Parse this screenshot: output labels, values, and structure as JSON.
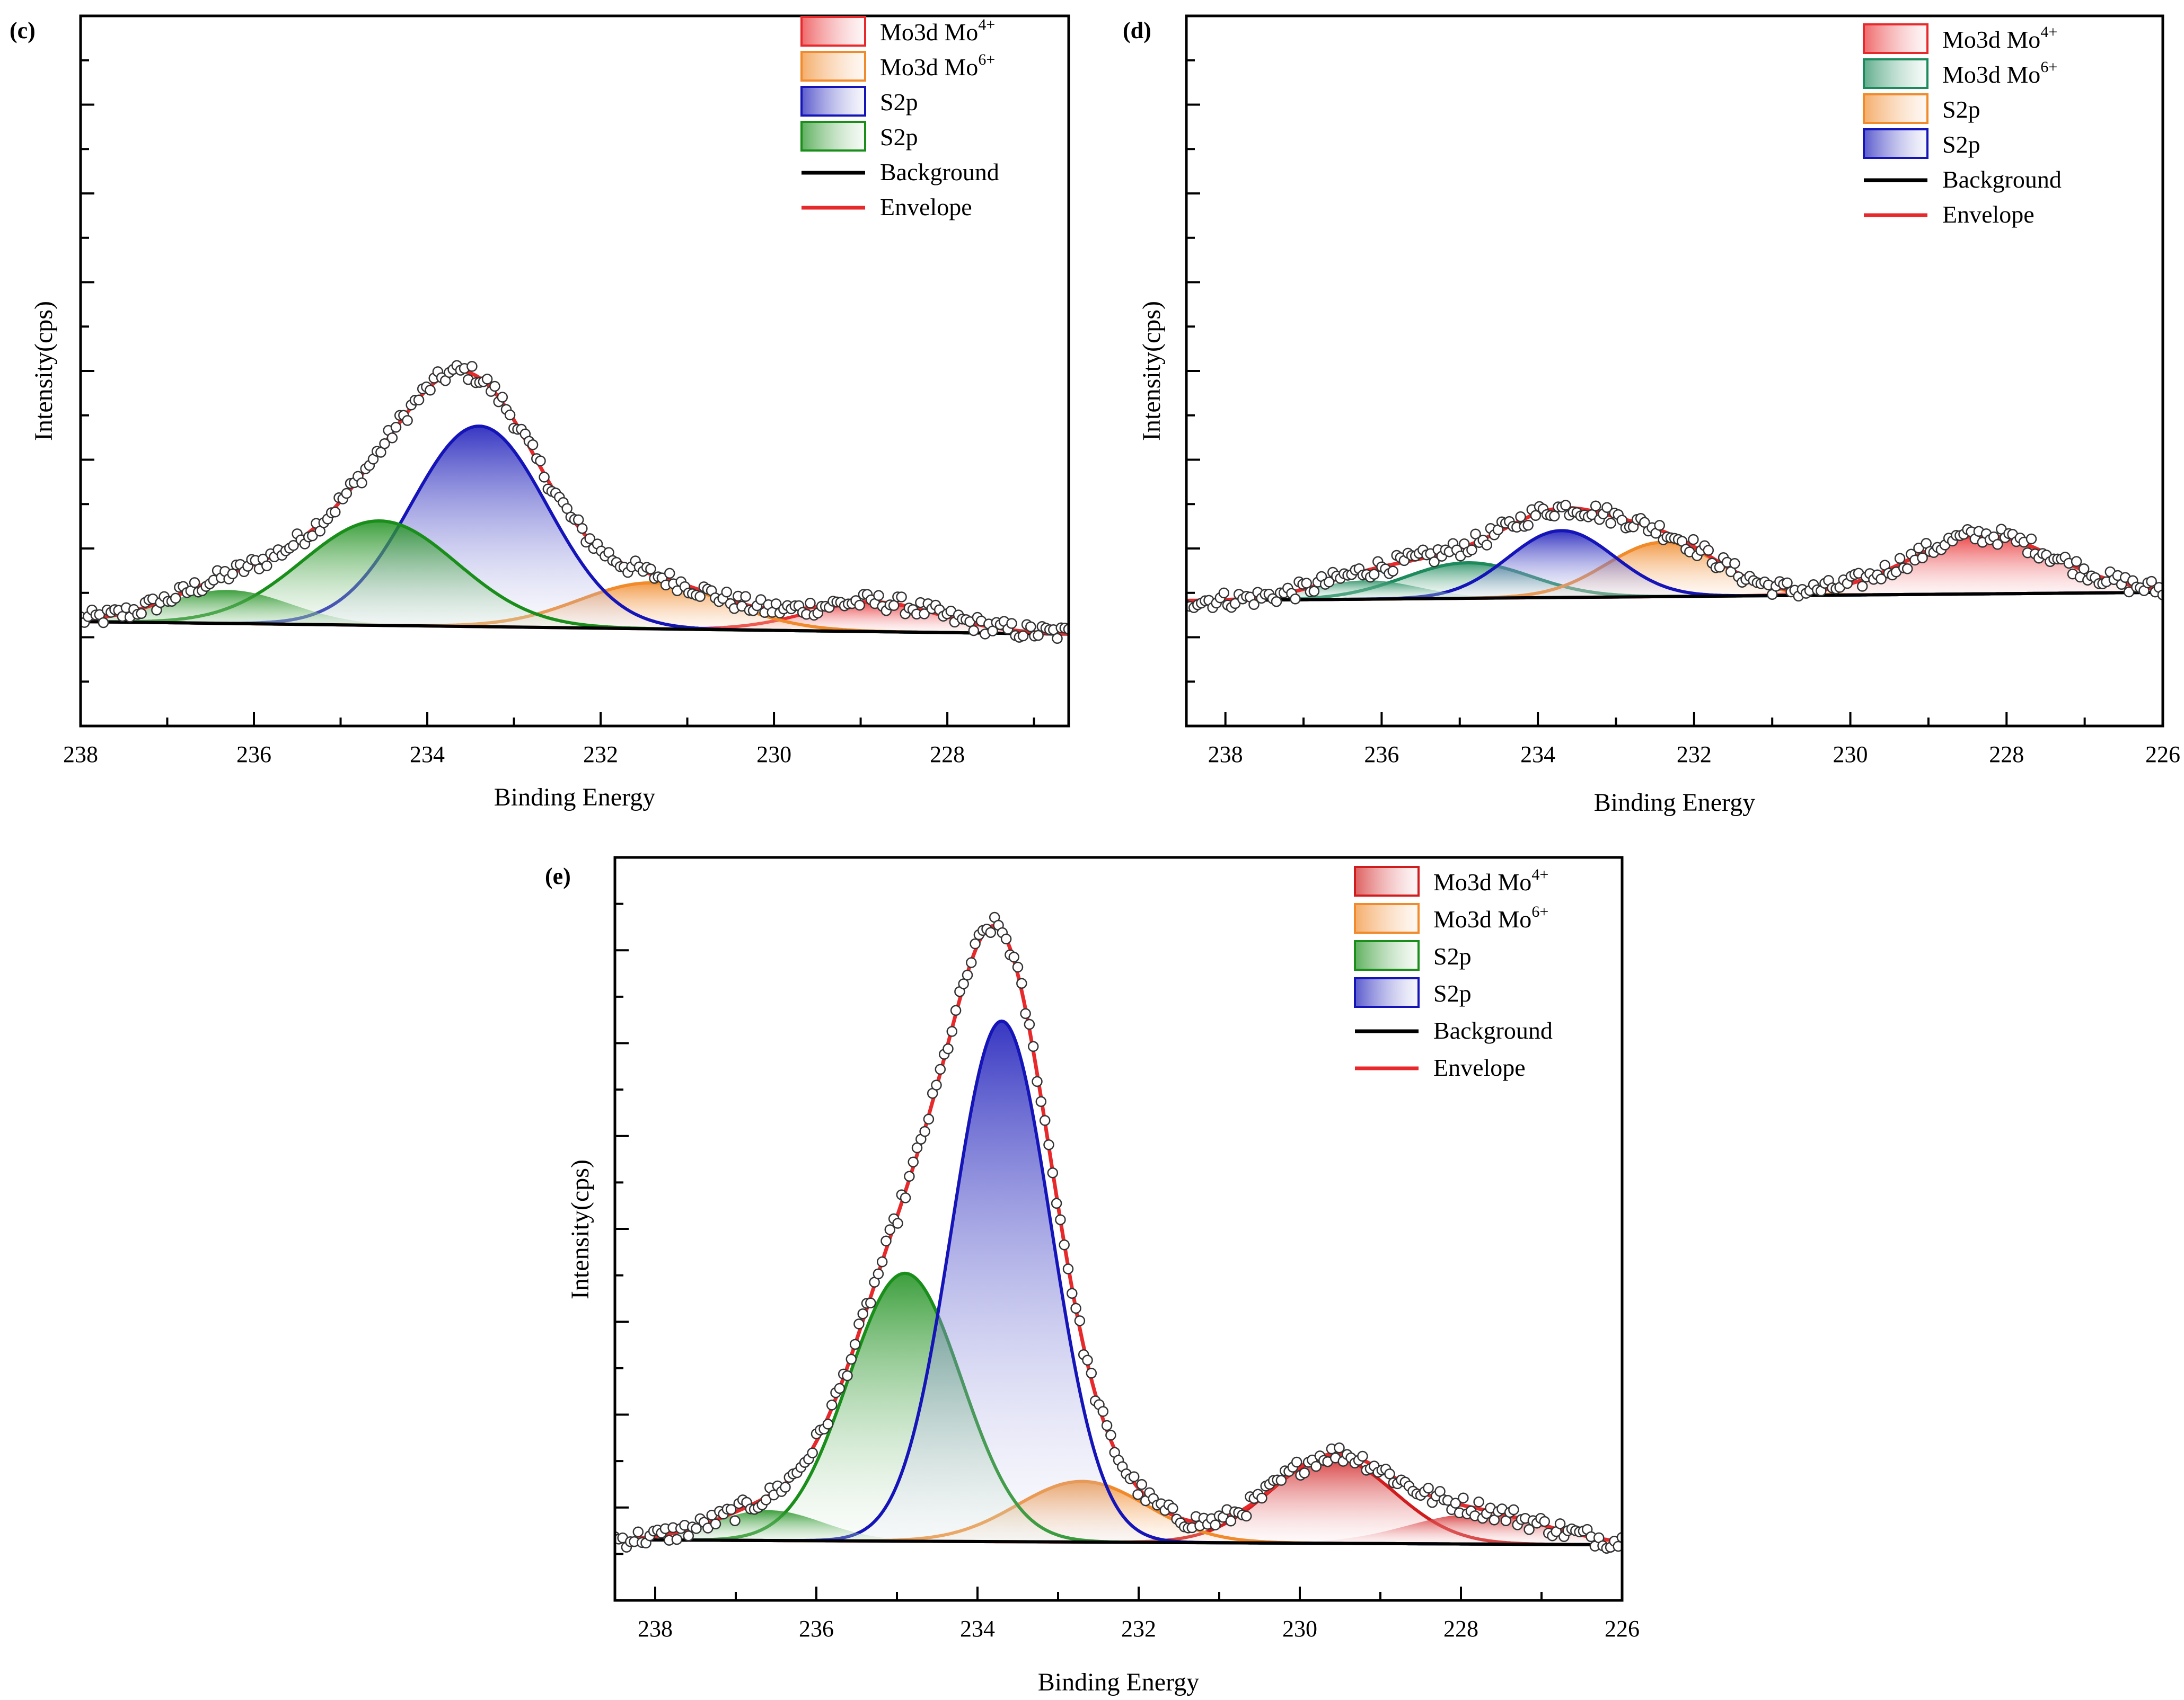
{
  "chart_data": [
    {
      "type": "line",
      "panel_label": "(c)",
      "title": "",
      "xlabel": "Binding Energy",
      "ylabel": "Intensity(cps)",
      "xlim": [
        238,
        226.6
      ],
      "ylim": [
        -0.25,
        1.45
      ],
      "xticks": [
        "238",
        "236",
        "234",
        "232",
        "230",
        "228"
      ],
      "baseline": [
        0.0,
        -0.03
      ],
      "components": [
        {
          "name": "Mo3d  Mo",
          "sup": "4+",
          "legend": "Mo3d  Mo4+",
          "center": 228.85,
          "height": 0.07,
          "fwhm": 1.8,
          "color": "#e8292b",
          "light": "#fbe3e6"
        },
        {
          "name": "Mo3d  Mo",
          "sup": "6+",
          "legend": "Mo3d  Mo6+",
          "center": 231.4,
          "height": 0.11,
          "fwhm": 2.0,
          "color": "#f08a2a",
          "light": "#fde8d8"
        },
        {
          "name": "S2p",
          "sup": "",
          "legend": "S2p",
          "center": 233.4,
          "height": 0.48,
          "fwhm": 1.85,
          "color": "#1414b8",
          "light": "#e4e6f6"
        },
        {
          "name": "S2p",
          "sup": "",
          "legend": "S2p",
          "center": 234.55,
          "height": 0.25,
          "fwhm": 2.1,
          "color": "#1a8e1a",
          "light": "#e4f1e4"
        },
        {
          "name": "S2p shoulder",
          "sup": "",
          "legend": "",
          "center": 236.3,
          "height": 0.08,
          "fwhm": 1.7,
          "color": "#1a8e1a",
          "light": "#e4f1e4",
          "hidden": true
        }
      ],
      "legend": [
        "Mo3d  Mo4+",
        "Mo3d  Mo6+",
        "S2p",
        "S2p",
        "Background",
        "Envelope"
      ],
      "background_color": "#000000",
      "envelope_color": "#e8292b"
    },
    {
      "type": "line",
      "panel_label": "(d)",
      "title": "",
      "xlabel": "Binding Energy",
      "ylabel": "Intensity(cps)",
      "xlim": [
        238.5,
        226
      ],
      "ylim": [
        -0.3,
        1.4
      ],
      "xticks": [
        "238",
        "236",
        "234",
        "232",
        "230",
        "228",
        "226"
      ],
      "baseline": [
        0.0,
        0.02
      ],
      "components": [
        {
          "name": "Mo3d  Mo",
          "sup": "4+",
          "legend": "Mo3d  Mo4+",
          "center": 228.3,
          "height": 0.14,
          "fwhm": 2.2,
          "color": "#e8292b",
          "light": "#fbe3e6"
        },
        {
          "name": "Mo3d  Mo",
          "sup": "6+",
          "legend": "Mo3d  Mo6+",
          "center": 234.9,
          "height": 0.085,
          "fwhm": 1.9,
          "color": "#1d8a5c",
          "light": "#e1f1ea"
        },
        {
          "name": "S2p",
          "sup": "",
          "legend": "S2p",
          "center": 232.4,
          "height": 0.13,
          "fwhm": 1.7,
          "color": "#f08a2a",
          "light": "#fde8d8"
        },
        {
          "name": "S2p",
          "sup": "",
          "legend": "S2p",
          "center": 233.7,
          "height": 0.16,
          "fwhm": 1.6,
          "color": "#1414b8",
          "light": "#e4e6f6"
        },
        {
          "name": "shoulder",
          "sup": "",
          "legend": "",
          "center": 236.2,
          "height": 0.045,
          "fwhm": 1.6,
          "color": "#1d8a5c",
          "light": "#e1f1ea",
          "hidden": true
        }
      ],
      "legend": [
        "Mo3d  Mo4+",
        "Mo3d  Mo6+",
        "S2p",
        "S2p",
        "Background",
        "Envelope"
      ],
      "background_color": "#000000",
      "envelope_color": "#e8292b"
    },
    {
      "type": "line",
      "panel_label": "(e)",
      "title": "",
      "xlabel": "Binding Energy",
      "ylabel": "Intensity(cps)",
      "xlim": [
        238.5,
        226
      ],
      "ylim": [
        -0.12,
        1.35
      ],
      "xticks": [
        "238",
        "236",
        "234",
        "232",
        "230",
        "228",
        "226"
      ],
      "baseline": [
        0.0,
        -0.01
      ],
      "components": [
        {
          "name": "Mo3d  Mo",
          "sup": "4+",
          "legend": "Mo3d  Mo4+",
          "center": 229.6,
          "height": 0.17,
          "fwhm": 1.8,
          "color": "#d01c1c",
          "light": "#fbe3e6"
        },
        {
          "name": "Mo3d  Mo",
          "sup": "6+",
          "legend": "Mo3d  Mo6+",
          "center": 232.7,
          "height": 0.12,
          "fwhm": 1.9,
          "color": "#f08a2a",
          "light": "#fde8d8"
        },
        {
          "name": "S2p",
          "sup": "",
          "legend": "S2p",
          "center": 234.9,
          "height": 0.53,
          "fwhm": 1.65,
          "color": "#1a8e1a",
          "light": "#e4f1e4"
        },
        {
          "name": "S2p",
          "sup": "",
          "legend": "S2p",
          "center": 233.7,
          "height": 1.03,
          "fwhm": 1.45,
          "color": "#1414b8",
          "light": "#e4e6f6"
        },
        {
          "name": "tail",
          "sup": "",
          "legend": "",
          "center": 236.6,
          "height": 0.06,
          "fwhm": 1.6,
          "color": "#1a8e1a",
          "light": "#e4f1e4",
          "hidden": true
        },
        {
          "name": "tail2",
          "sup": "",
          "legend": "",
          "center": 227.8,
          "height": 0.06,
          "fwhm": 2.0,
          "color": "#d01c1c",
          "light": "#fbe3e6",
          "hidden": true
        }
      ],
      "legend": [
        "Mo3d  Mo4+",
        "Mo3d  Mo6+",
        "S2p",
        "S2p",
        "Background",
        "Envelope"
      ],
      "background_color": "#000000",
      "envelope_color": "#e8292b"
    }
  ]
}
